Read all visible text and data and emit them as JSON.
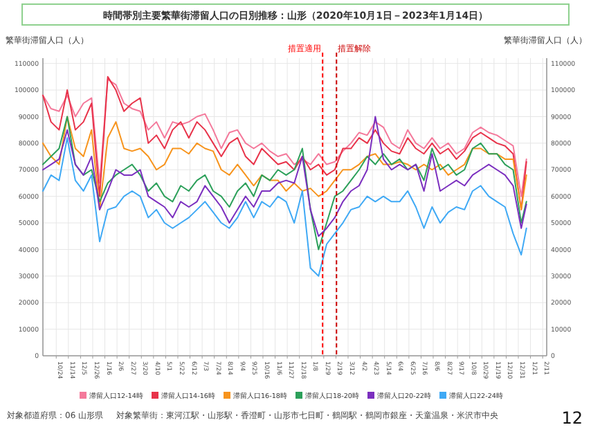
{
  "chart_data": {
    "type": "line",
    "title": "時間帯別主要繁華街滞留人口の日別推移：山形（2020年10月1日－2023年1月14日）",
    "ylabel": "繁華街滞留人口（人）",
    "y2label": "繁華街滞留人口（人）",
    "x": [
      "2020-10-01",
      "2020-10-15",
      "2020-10-29",
      "2020-11-12",
      "2020-11-26",
      "2020-12-10",
      "2020-12-24",
      "2021-01-07",
      "2021-01-21",
      "2021-02-04",
      "2021-02-18",
      "2021-03-04",
      "2021-03-18",
      "2021-04-01",
      "2021-04-15",
      "2021-04-29",
      "2021-05-13",
      "2021-05-27",
      "2021-06-10",
      "2021-06-24",
      "2021-07-08",
      "2021-07-22",
      "2021-08-05",
      "2021-08-19",
      "2021-09-02",
      "2021-09-16",
      "2021-09-30",
      "2021-10-14",
      "2021-10-28",
      "2021-11-11",
      "2021-11-25",
      "2021-12-09",
      "2021-12-23",
      "2022-01-06",
      "2022-01-20",
      "2022-02-03",
      "2022-02-17",
      "2022-03-03",
      "2022-03-17",
      "2022-03-31",
      "2022-04-14",
      "2022-04-28",
      "2022-05-12",
      "2022-05-26",
      "2022-06-09",
      "2022-06-23",
      "2022-07-07",
      "2022-07-21",
      "2022-08-04",
      "2022-08-18",
      "2022-09-01",
      "2022-09-15",
      "2022-09-29",
      "2022-10-13",
      "2022-10-27",
      "2022-11-10",
      "2022-11-24",
      "2022-12-08",
      "2022-12-22",
      "2023-01-05",
      "2023-01-14"
    ],
    "xlim": [
      "2020-10-01",
      "2023-02-18"
    ],
    "xticks": [
      {
        "value": "2020-10-24",
        "label": "10/24"
      },
      {
        "value": "2020-11-14",
        "label": "11/14"
      },
      {
        "value": "2020-12-05",
        "label": "12/5"
      },
      {
        "value": "2020-12-26",
        "label": "12/26"
      },
      {
        "value": "2021-01-16",
        "label": "1/16"
      },
      {
        "value": "2021-02-06",
        "label": "2/6"
      },
      {
        "value": "2021-02-27",
        "label": "2/27"
      },
      {
        "value": "2021-03-20",
        "label": "3/20"
      },
      {
        "value": "2021-04-10",
        "label": "4/10"
      },
      {
        "value": "2021-05-01",
        "label": "5/1"
      },
      {
        "value": "2021-05-22",
        "label": "5/22"
      },
      {
        "value": "2021-06-12",
        "label": "6/12"
      },
      {
        "value": "2021-07-03",
        "label": "7/3"
      },
      {
        "value": "2021-07-24",
        "label": "7/24"
      },
      {
        "value": "2021-08-14",
        "label": "8/14"
      },
      {
        "value": "2021-09-04",
        "label": "9/4"
      },
      {
        "value": "2021-09-25",
        "label": "9/25"
      },
      {
        "value": "2021-10-16",
        "label": "10/16"
      },
      {
        "value": "2021-11-06",
        "label": "11/6"
      },
      {
        "value": "2021-11-27",
        "label": "11/27"
      },
      {
        "value": "2021-12-18",
        "label": "12/18"
      },
      {
        "value": "2022-01-08",
        "label": "1/8"
      },
      {
        "value": "2022-01-29",
        "label": "1/29"
      },
      {
        "value": "2022-02-19",
        "label": "2/19"
      },
      {
        "value": "2022-03-12",
        "label": "3/12"
      },
      {
        "value": "2022-04-02",
        "label": "4/2"
      },
      {
        "value": "2022-04-23",
        "label": "4/23"
      },
      {
        "value": "2022-05-14",
        "label": "5/14"
      },
      {
        "value": "2022-06-04",
        "label": "6/4"
      },
      {
        "value": "2022-06-25",
        "label": "6/25"
      },
      {
        "value": "2022-07-16",
        "label": "7/16"
      },
      {
        "value": "2022-08-06",
        "label": "8/6"
      },
      {
        "value": "2022-08-27",
        "label": "8/27"
      },
      {
        "value": "2022-09-17",
        "label": "9/17"
      },
      {
        "value": "2022-10-08",
        "label": "10/8"
      },
      {
        "value": "2022-10-29",
        "label": "10/29"
      },
      {
        "value": "2022-11-19",
        "label": "11/19"
      },
      {
        "value": "2022-12-10",
        "label": "12/10"
      },
      {
        "value": "2022-12-31",
        "label": "12/31"
      },
      {
        "value": "2023-01-21",
        "label": "1/21"
      },
      {
        "value": "2023-02-11",
        "label": "2/11"
      }
    ],
    "ylim": [
      0,
      112000
    ],
    "yticks": [
      0,
      10000,
      20000,
      30000,
      40000,
      50000,
      60000,
      70000,
      80000,
      90000,
      100000,
      110000
    ],
    "y2lim": [
      0,
      112000
    ],
    "y2ticks": [
      0,
      10000,
      20000,
      30000,
      40000,
      50000,
      60000,
      70000,
      80000,
      90000,
      100000,
      110000
    ],
    "grid": true,
    "legend": "bottom",
    "line_style": "solid",
    "ref_lines": [
      {
        "axis": "x",
        "value": "2022-01-27",
        "label": "措置適用",
        "color": "#ff0000",
        "line_style": "dashed"
      },
      {
        "axis": "x",
        "value": "2022-02-20",
        "label": "措置解除",
        "color": "#cc0000",
        "line_style": "dashed"
      }
    ],
    "annotations": [
      "対象都道府県：06 山形県",
      "対象繁華街：東河江駅・山形駅・香澄町・山形市七日町・鶴岡駅・鶴岡市銀座・天童温泉・米沢市中央",
      "12"
    ],
    "series": [
      {
        "name": "滞留人口12-14時",
        "color": "#f4799b",
        "values": [
          98000,
          93000,
          92000,
          98000,
          90000,
          95000,
          97000,
          65000,
          104000,
          102000,
          95000,
          93000,
          92000,
          85000,
          88000,
          82000,
          88000,
          87000,
          88000,
          90000,
          91000,
          85000,
          78000,
          84000,
          85000,
          80000,
          78000,
          80000,
          77000,
          75000,
          76000,
          72000,
          74000,
          72000,
          76000,
          72000,
          73000,
          77000,
          80000,
          84000,
          83000,
          88000,
          86000,
          80000,
          78000,
          85000,
          80000,
          78000,
          82000,
          78000,
          80000,
          76000,
          78000,
          84000,
          86000,
          84000,
          83000,
          81000,
          79000,
          60000,
          74000
        ]
      },
      {
        "name": "滞留人口14-16時",
        "color": "#e8334a",
        "values": [
          98000,
          88000,
          85000,
          100000,
          85000,
          88000,
          95000,
          60000,
          105000,
          100000,
          92000,
          95000,
          97000,
          80000,
          83000,
          78000,
          85000,
          88000,
          82000,
          88000,
          85000,
          80000,
          75000,
          80000,
          82000,
          75000,
          72000,
          78000,
          75000,
          72000,
          73000,
          70000,
          75000,
          70000,
          72000,
          68000,
          70000,
          78000,
          78000,
          82000,
          80000,
          85000,
          80000,
          77000,
          76000,
          82000,
          78000,
          76000,
          80000,
          76000,
          78000,
          74000,
          77000,
          82000,
          84000,
          82000,
          80000,
          79000,
          76000,
          55000,
          73000
        ]
      },
      {
        "name": "滞留人口16-18時",
        "color": "#f7941d",
        "values": [
          80000,
          75000,
          72000,
          90000,
          78000,
          75000,
          85000,
          55000,
          82000,
          88000,
          78000,
          77000,
          78000,
          75000,
          70000,
          72000,
          78000,
          78000,
          76000,
          80000,
          78000,
          77000,
          70000,
          68000,
          72000,
          68000,
          64000,
          68000,
          66000,
          66000,
          62000,
          65000,
          62000,
          63000,
          60000,
          62000,
          66000,
          70000,
          70000,
          72000,
          75000,
          76000,
          72000,
          72000,
          73000,
          72000,
          70000,
          72000,
          70000,
          72000,
          68000,
          70000,
          72000,
          78000,
          78000,
          76000,
          76000,
          74000,
          74000,
          55000,
          68000
        ]
      },
      {
        "name": "滞留人口18-20時",
        "color": "#2ca05a",
        "values": [
          72000,
          75000,
          78000,
          90000,
          72000,
          68000,
          70000,
          58000,
          65000,
          68000,
          70000,
          72000,
          68000,
          62000,
          65000,
          60000,
          58000,
          64000,
          62000,
          66000,
          68000,
          62000,
          60000,
          56000,
          62000,
          65000,
          60000,
          68000,
          66000,
          70000,
          68000,
          70000,
          78000,
          55000,
          40000,
          50000,
          60000,
          62000,
          66000,
          70000,
          75000,
          72000,
          76000,
          72000,
          74000,
          70000,
          72000,
          66000,
          78000,
          70000,
          72000,
          68000,
          70000,
          78000,
          80000,
          76000,
          76000,
          72000,
          70000,
          50000,
          58000
        ]
      },
      {
        "name": "滞留人口20-22時",
        "color": "#7b2fbf",
        "values": [
          70000,
          72000,
          74000,
          85000,
          72000,
          68000,
          75000,
          55000,
          62000,
          70000,
          68000,
          68000,
          70000,
          60000,
          58000,
          56000,
          52000,
          58000,
          56000,
          58000,
          64000,
          60000,
          56000,
          50000,
          55000,
          60000,
          56000,
          62000,
          62000,
          65000,
          66000,
          65000,
          75000,
          55000,
          45000,
          48000,
          52000,
          58000,
          62000,
          64000,
          70000,
          90000,
          74000,
          70000,
          72000,
          70000,
          72000,
          62000,
          76000,
          62000,
          64000,
          66000,
          64000,
          68000,
          70000,
          72000,
          70000,
          68000,
          64000,
          48000,
          57000
        ]
      },
      {
        "name": "滞留人口22-24時",
        "color": "#3fa9f5",
        "values": [
          62000,
          68000,
          66000,
          82000,
          66000,
          62000,
          68000,
          43000,
          55000,
          56000,
          60000,
          62000,
          60000,
          52000,
          55000,
          50000,
          48000,
          50000,
          52000,
          55000,
          58000,
          54000,
          50000,
          48000,
          52000,
          58000,
          52000,
          58000,
          56000,
          60000,
          58000,
          50000,
          62000,
          33000,
          30000,
          42000,
          46000,
          50000,
          55000,
          56000,
          60000,
          58000,
          60000,
          58000,
          58000,
          62000,
          56000,
          48000,
          56000,
          50000,
          54000,
          56000,
          55000,
          62000,
          64000,
          60000,
          58000,
          56000,
          46000,
          38000,
          48000
        ]
      }
    ]
  }
}
